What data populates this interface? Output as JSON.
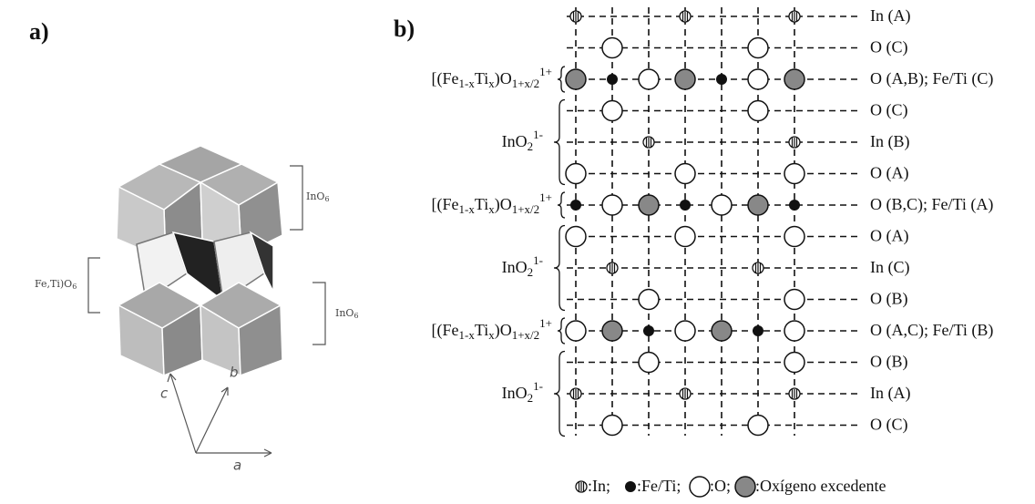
{
  "panel_a": {
    "label": "a)",
    "polyhedra_labels": [
      [
        "InO",
        "6"
      ],
      [
        "Fe,Ti)O",
        "6"
      ],
      [
        "InO",
        "6"
      ]
    ],
    "axes": [
      "c",
      "b",
      "a"
    ]
  },
  "panel_b": {
    "label": "b)",
    "row_labels": [
      "In (A)",
      "O (C)",
      "O (A,B); Fe/Ti (C)",
      "O (C)",
      "In (B)",
      "O (A)",
      "O (B,C); Fe/Ti (A)",
      "O (A)",
      "In (C)",
      "O (B)",
      "O (A,C); Fe/Ti (B)",
      "O (B)",
      "In (A)",
      "O (C)"
    ],
    "layer_labels": [
      [
        "[(Fe",
        "1-x",
        "Ti",
        "x",
        ")O",
        "1+x/2",
        "1+"
      ],
      [
        "InO",
        "2",
        "1-"
      ],
      [
        "[(Fe",
        "1-x",
        "Ti",
        "x",
        ")O",
        "1+x/2",
        "1+"
      ],
      [
        "InO",
        "2",
        "1-"
      ],
      [
        "[(Fe",
        "1-x",
        "Ti",
        "x",
        ")O",
        "1+x/2",
        "1+"
      ],
      [
        "InO",
        "2",
        "1-"
      ]
    ],
    "legend": [
      ":In;",
      ":Fe/Ti;",
      ":O;",
      ":Oxígeno excedente"
    ]
  }
}
